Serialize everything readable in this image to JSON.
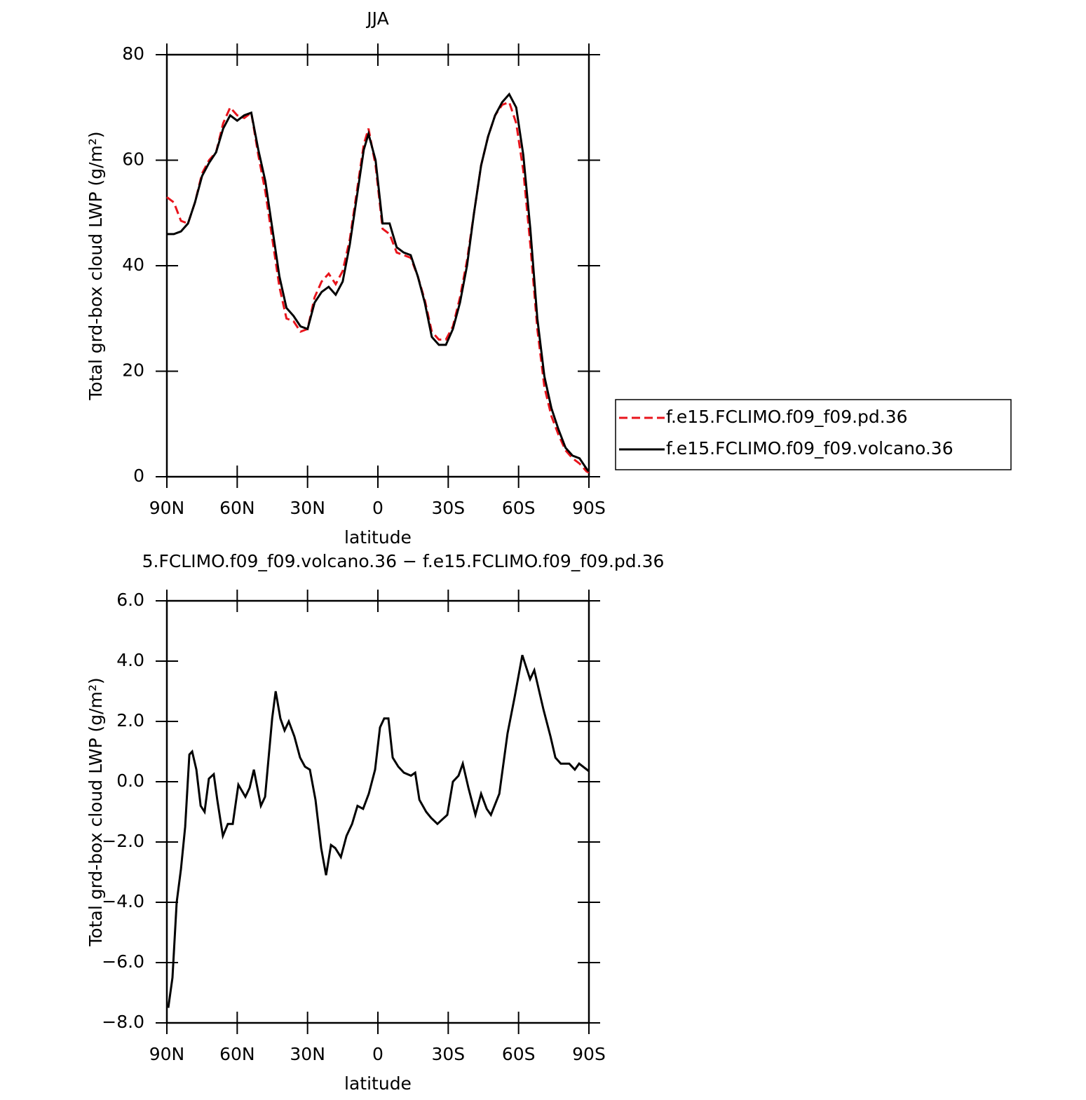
{
  "chart_data": [
    {
      "type": "line",
      "title": "JJA",
      "x_label": "latitude",
      "y_label": "Total grd-box cloud LWP (g/m²)",
      "x": [
        90,
        87,
        84,
        81,
        78,
        75,
        72,
        69,
        66,
        63,
        60,
        57,
        54,
        51,
        48,
        45,
        42,
        39,
        36,
        33,
        30,
        27,
        24,
        21,
        18,
        15,
        12,
        9,
        6,
        4,
        1,
        -2,
        -5,
        -8,
        -11,
        -14,
        -17,
        -20,
        -23,
        -26,
        -29,
        -32,
        -35,
        -38,
        -41,
        -44,
        -47,
        -50,
        -53,
        -56,
        -59,
        -62,
        -65,
        -68,
        -71,
        -74,
        -77,
        -80,
        -83,
        -86,
        -89,
        -90
      ],
      "series": [
        {
          "name": "f.e15.FCLIMO.f09_f09.pd.36",
          "color": "#e8141c",
          "linestyle": "dashed",
          "values": [
            53,
            52,
            48.5,
            48,
            52,
            57.5,
            60,
            61.5,
            67,
            70,
            68.5,
            68,
            69,
            61,
            54,
            45,
            36,
            30,
            29.5,
            27.5,
            28,
            34,
            37,
            38.5,
            36.5,
            39,
            45,
            54,
            63,
            66,
            59,
            47,
            46,
            42.5,
            42,
            41.5,
            38,
            33.5,
            27.5,
            26,
            26,
            28.5,
            34,
            41,
            50,
            59,
            64.5,
            68.5,
            70.5,
            71,
            67,
            58,
            44,
            28,
            17,
            11.5,
            8,
            5,
            3.5,
            2.5,
            1,
            0.8
          ]
        },
        {
          "name": "f.e15.FCLIMO.f09_f09.volcano.36",
          "color": "#000000",
          "linestyle": "solid",
          "values": [
            46,
            46,
            46.5,
            48,
            52,
            57,
            59.5,
            61.5,
            66,
            68.5,
            67.5,
            68.5,
            69,
            62,
            56,
            47,
            38,
            32,
            30.5,
            28.5,
            28,
            33,
            35,
            36,
            34.5,
            37,
            44,
            53,
            62,
            65,
            60,
            48,
            48,
            43.5,
            42.5,
            42,
            38,
            33,
            26.5,
            25,
            25,
            28,
            33,
            40,
            50,
            59,
            64.5,
            68.5,
            71,
            72.5,
            70,
            61,
            47,
            30,
            19,
            13,
            9,
            5.5,
            4,
            3.5,
            1.5,
            1
          ]
        }
      ],
      "xlim": [
        90,
        -90
      ],
      "xticks": [
        {
          "value": 90,
          "label": "90N"
        },
        {
          "value": 60,
          "label": "60N"
        },
        {
          "value": 30,
          "label": "30N"
        },
        0,
        {
          "value": -30,
          "label": "30S"
        },
        {
          "value": -60,
          "label": "60S"
        },
        {
          "value": -90,
          "label": "90S"
        }
      ],
      "ylim": [
        0,
        80
      ],
      "yticks": [
        0,
        20,
        40,
        60,
        80
      ],
      "legend": "right"
    },
    {
      "type": "line",
      "title": "5.FCLIMO.f09_f09.volcano.36 − f.e15.FCLIMO.f09_f09.pd.36",
      "x_label": "latitude",
      "y_label": "Total grd-box cloud LWP (g/m²)",
      "x": [
        89.4,
        87.6,
        85.8,
        84,
        82.2,
        80.4,
        79.2,
        77.4,
        75.6,
        73.9,
        72.1,
        70,
        68.5,
        66.1,
        64,
        61.9,
        59.5,
        56.5,
        54.7,
        52.9,
        49.9,
        48.1,
        45.1,
        43.6,
        41.6,
        39.8,
        38,
        35.6,
        33.2,
        31.1,
        29,
        26.6,
        24.2,
        22.1,
        20,
        18.2,
        15.8,
        13.4,
        11,
        8.7,
        6.3,
        3.9,
        1.2,
        -0.9,
        -2.7,
        -4.5,
        -6.3,
        -8.7,
        -11.1,
        -14.1,
        -15.9,
        -17.7,
        -20.6,
        -22.7,
        -25.4,
        -29.6,
        -32,
        -34.4,
        -36.2,
        -38.6,
        -41.6,
        -44,
        -46.4,
        -48.2,
        -51.8,
        -55.3,
        -58.3,
        -61.6,
        -64.9,
        -66.7,
        -70.6,
        -73.6,
        -75.7,
        -78,
        -81.6,
        -84,
        -85.8,
        -90
      ],
      "series": [
        {
          "name": "difference",
          "color": "#000000",
          "linestyle": "solid",
          "values": [
            -7.5,
            -6.5,
            -4,
            -2.9,
            -1.5,
            0.9,
            1.0,
            0.4,
            -0.8,
            -1.0,
            0.1,
            0.25,
            -0.6,
            -1.8,
            -1.4,
            -1.4,
            -0.1,
            -0.5,
            -0.2,
            0.4,
            -0.8,
            -0.5,
            2.1,
            3.0,
            2.1,
            1.7,
            2.0,
            1.5,
            0.8,
            0.5,
            0.4,
            -0.6,
            -2.2,
            -3.1,
            -2.1,
            -2.2,
            -2.5,
            -1.8,
            -1.4,
            -0.8,
            -0.9,
            -0.4,
            0.4,
            1.8,
            2.1,
            2.1,
            0.8,
            0.5,
            0.3,
            0.2,
            0.3,
            -0.6,
            -1.0,
            -1.2,
            -1.4,
            -1.1,
            0.0,
            0.2,
            0.6,
            -0.2,
            -1.1,
            -0.4,
            -0.9,
            -1.1,
            -0.4,
            1.6,
            2.8,
            4.2,
            3.4,
            3.7,
            2.4,
            1.5,
            0.8,
            0.6,
            0.6,
            0.4,
            0.6,
            0.35
          ]
        }
      ],
      "xlim": [
        90,
        -90
      ],
      "xticks": [
        {
          "value": 90,
          "label": "90N"
        },
        {
          "value": 60,
          "label": "60N"
        },
        {
          "value": 30,
          "label": "30N"
        },
        0,
        {
          "value": -30,
          "label": "30S"
        },
        {
          "value": -60,
          "label": "60S"
        },
        {
          "value": -90,
          "label": "90S"
        }
      ],
      "ylim": [
        -8,
        6
      ],
      "yticks": [
        {
          "value": -8,
          "label": "−8.0"
        },
        {
          "value": -6,
          "label": "−6.0"
        },
        {
          "value": -4,
          "label": "−4.0"
        },
        {
          "value": -2,
          "label": "−2.0"
        },
        {
          "value": 0,
          "label": "0.0"
        },
        {
          "value": 2,
          "label": "2.0"
        },
        {
          "value": 4,
          "label": "4.0"
        },
        {
          "value": 6,
          "label": "6.0"
        }
      ]
    }
  ]
}
